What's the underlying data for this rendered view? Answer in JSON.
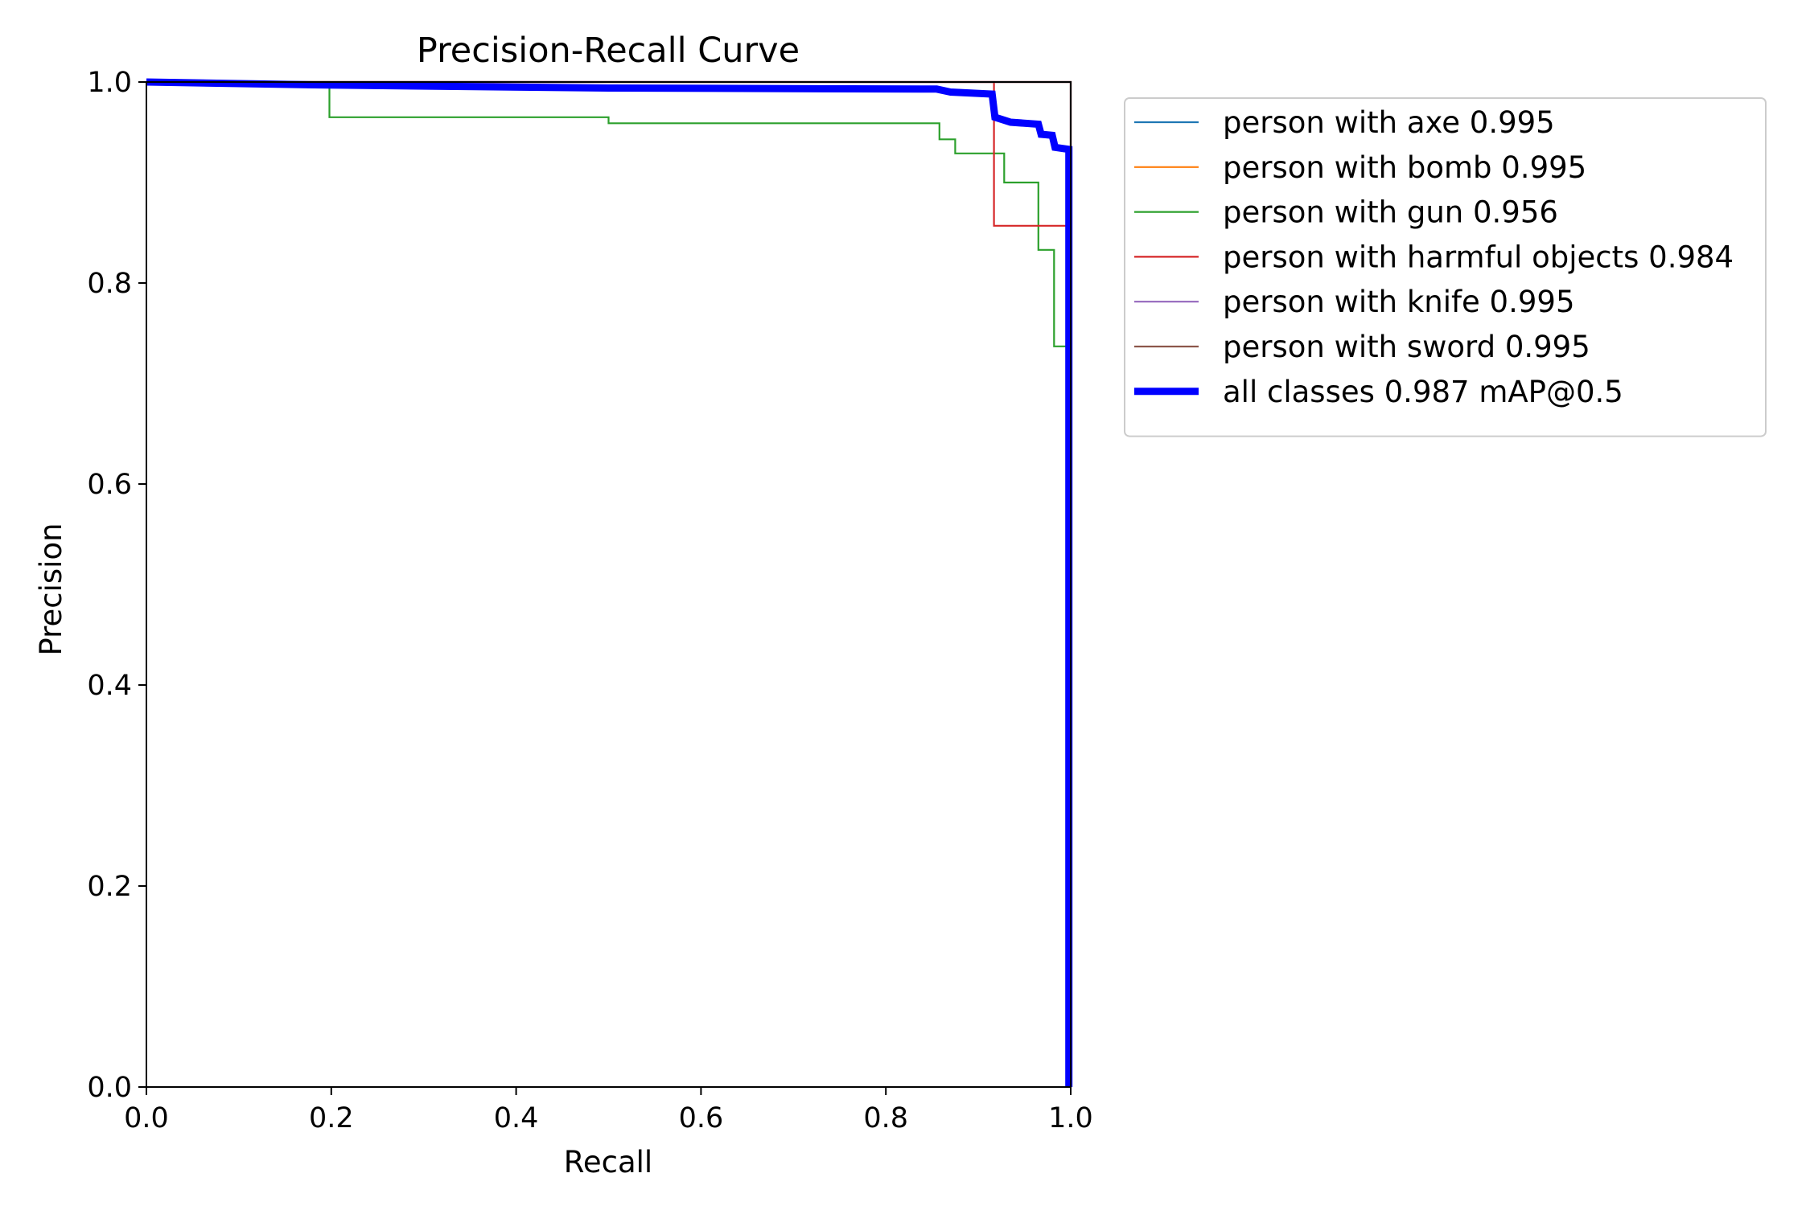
{
  "chart_data": {
    "type": "line",
    "title": "Precision-Recall Curve",
    "xlabel": "Recall",
    "ylabel": "Precision",
    "xlim": [
      0,
      1
    ],
    "ylim": [
      0,
      1
    ],
    "x_ticks": [
      "0.0",
      "0.2",
      "0.4",
      "0.6",
      "0.8",
      "1.0"
    ],
    "y_ticks": [
      "0.0",
      "0.2",
      "0.4",
      "0.6",
      "0.8",
      "1.0"
    ],
    "grid": false,
    "legend_position": "outside-right-top",
    "series": [
      {
        "name": "person with axe 0.995",
        "color": "#1f77b4",
        "points": [
          [
            0,
            1.0
          ],
          [
            1.0,
            1.0
          ],
          [
            1.0,
            0.0
          ]
        ]
      },
      {
        "name": "person with bomb 0.995",
        "color": "#ff7f0e",
        "points": [
          [
            0,
            1.0
          ],
          [
            1.0,
            1.0
          ],
          [
            1.0,
            0.0
          ]
        ]
      },
      {
        "name": "person with gun 0.956",
        "color": "#2ca02c",
        "points": [
          [
            0,
            1.0
          ],
          [
            0.198,
            1.0
          ],
          [
            0.198,
            0.965
          ],
          [
            0.5,
            0.965
          ],
          [
            0.5,
            0.959
          ],
          [
            0.858,
            0.959
          ],
          [
            0.858,
            0.943
          ],
          [
            0.875,
            0.943
          ],
          [
            0.875,
            0.929
          ],
          [
            0.928,
            0.929
          ],
          [
            0.928,
            0.9
          ],
          [
            0.965,
            0.9
          ],
          [
            0.965,
            0.833
          ],
          [
            0.982,
            0.833
          ],
          [
            0.982,
            0.737
          ],
          [
            0.998,
            0.737
          ],
          [
            0.998,
            0.0
          ]
        ]
      },
      {
        "name": "person with harmful objects 0.984",
        "color": "#d62728",
        "points": [
          [
            0,
            1.0
          ],
          [
            0.917,
            1.0
          ],
          [
            0.917,
            0.857
          ],
          [
            0.998,
            0.857
          ],
          [
            0.998,
            0.0
          ]
        ]
      },
      {
        "name": "person with knife 0.995",
        "color": "#9467bd",
        "points": [
          [
            0,
            1.0
          ],
          [
            1.0,
            1.0
          ],
          [
            1.0,
            0.0
          ]
        ]
      },
      {
        "name": "person with sword 0.995",
        "color": "#8c564b",
        "points": [
          [
            0,
            1.0
          ],
          [
            1.0,
            1.0
          ],
          [
            1.0,
            0.0
          ]
        ]
      },
      {
        "name": "all classes 0.987 mAP@0.5",
        "color": "#0000ff",
        "thick": true,
        "points": [
          [
            0,
            1.0
          ],
          [
            0.198,
            0.997
          ],
          [
            0.5,
            0.994
          ],
          [
            0.855,
            0.993
          ],
          [
            0.87,
            0.99
          ],
          [
            0.915,
            0.988
          ],
          [
            0.918,
            0.965
          ],
          [
            0.935,
            0.96
          ],
          [
            0.965,
            0.958
          ],
          [
            0.968,
            0.948
          ],
          [
            0.98,
            0.947
          ],
          [
            0.983,
            0.935
          ],
          [
            0.998,
            0.933
          ],
          [
            0.998,
            0.0
          ]
        ]
      }
    ]
  }
}
